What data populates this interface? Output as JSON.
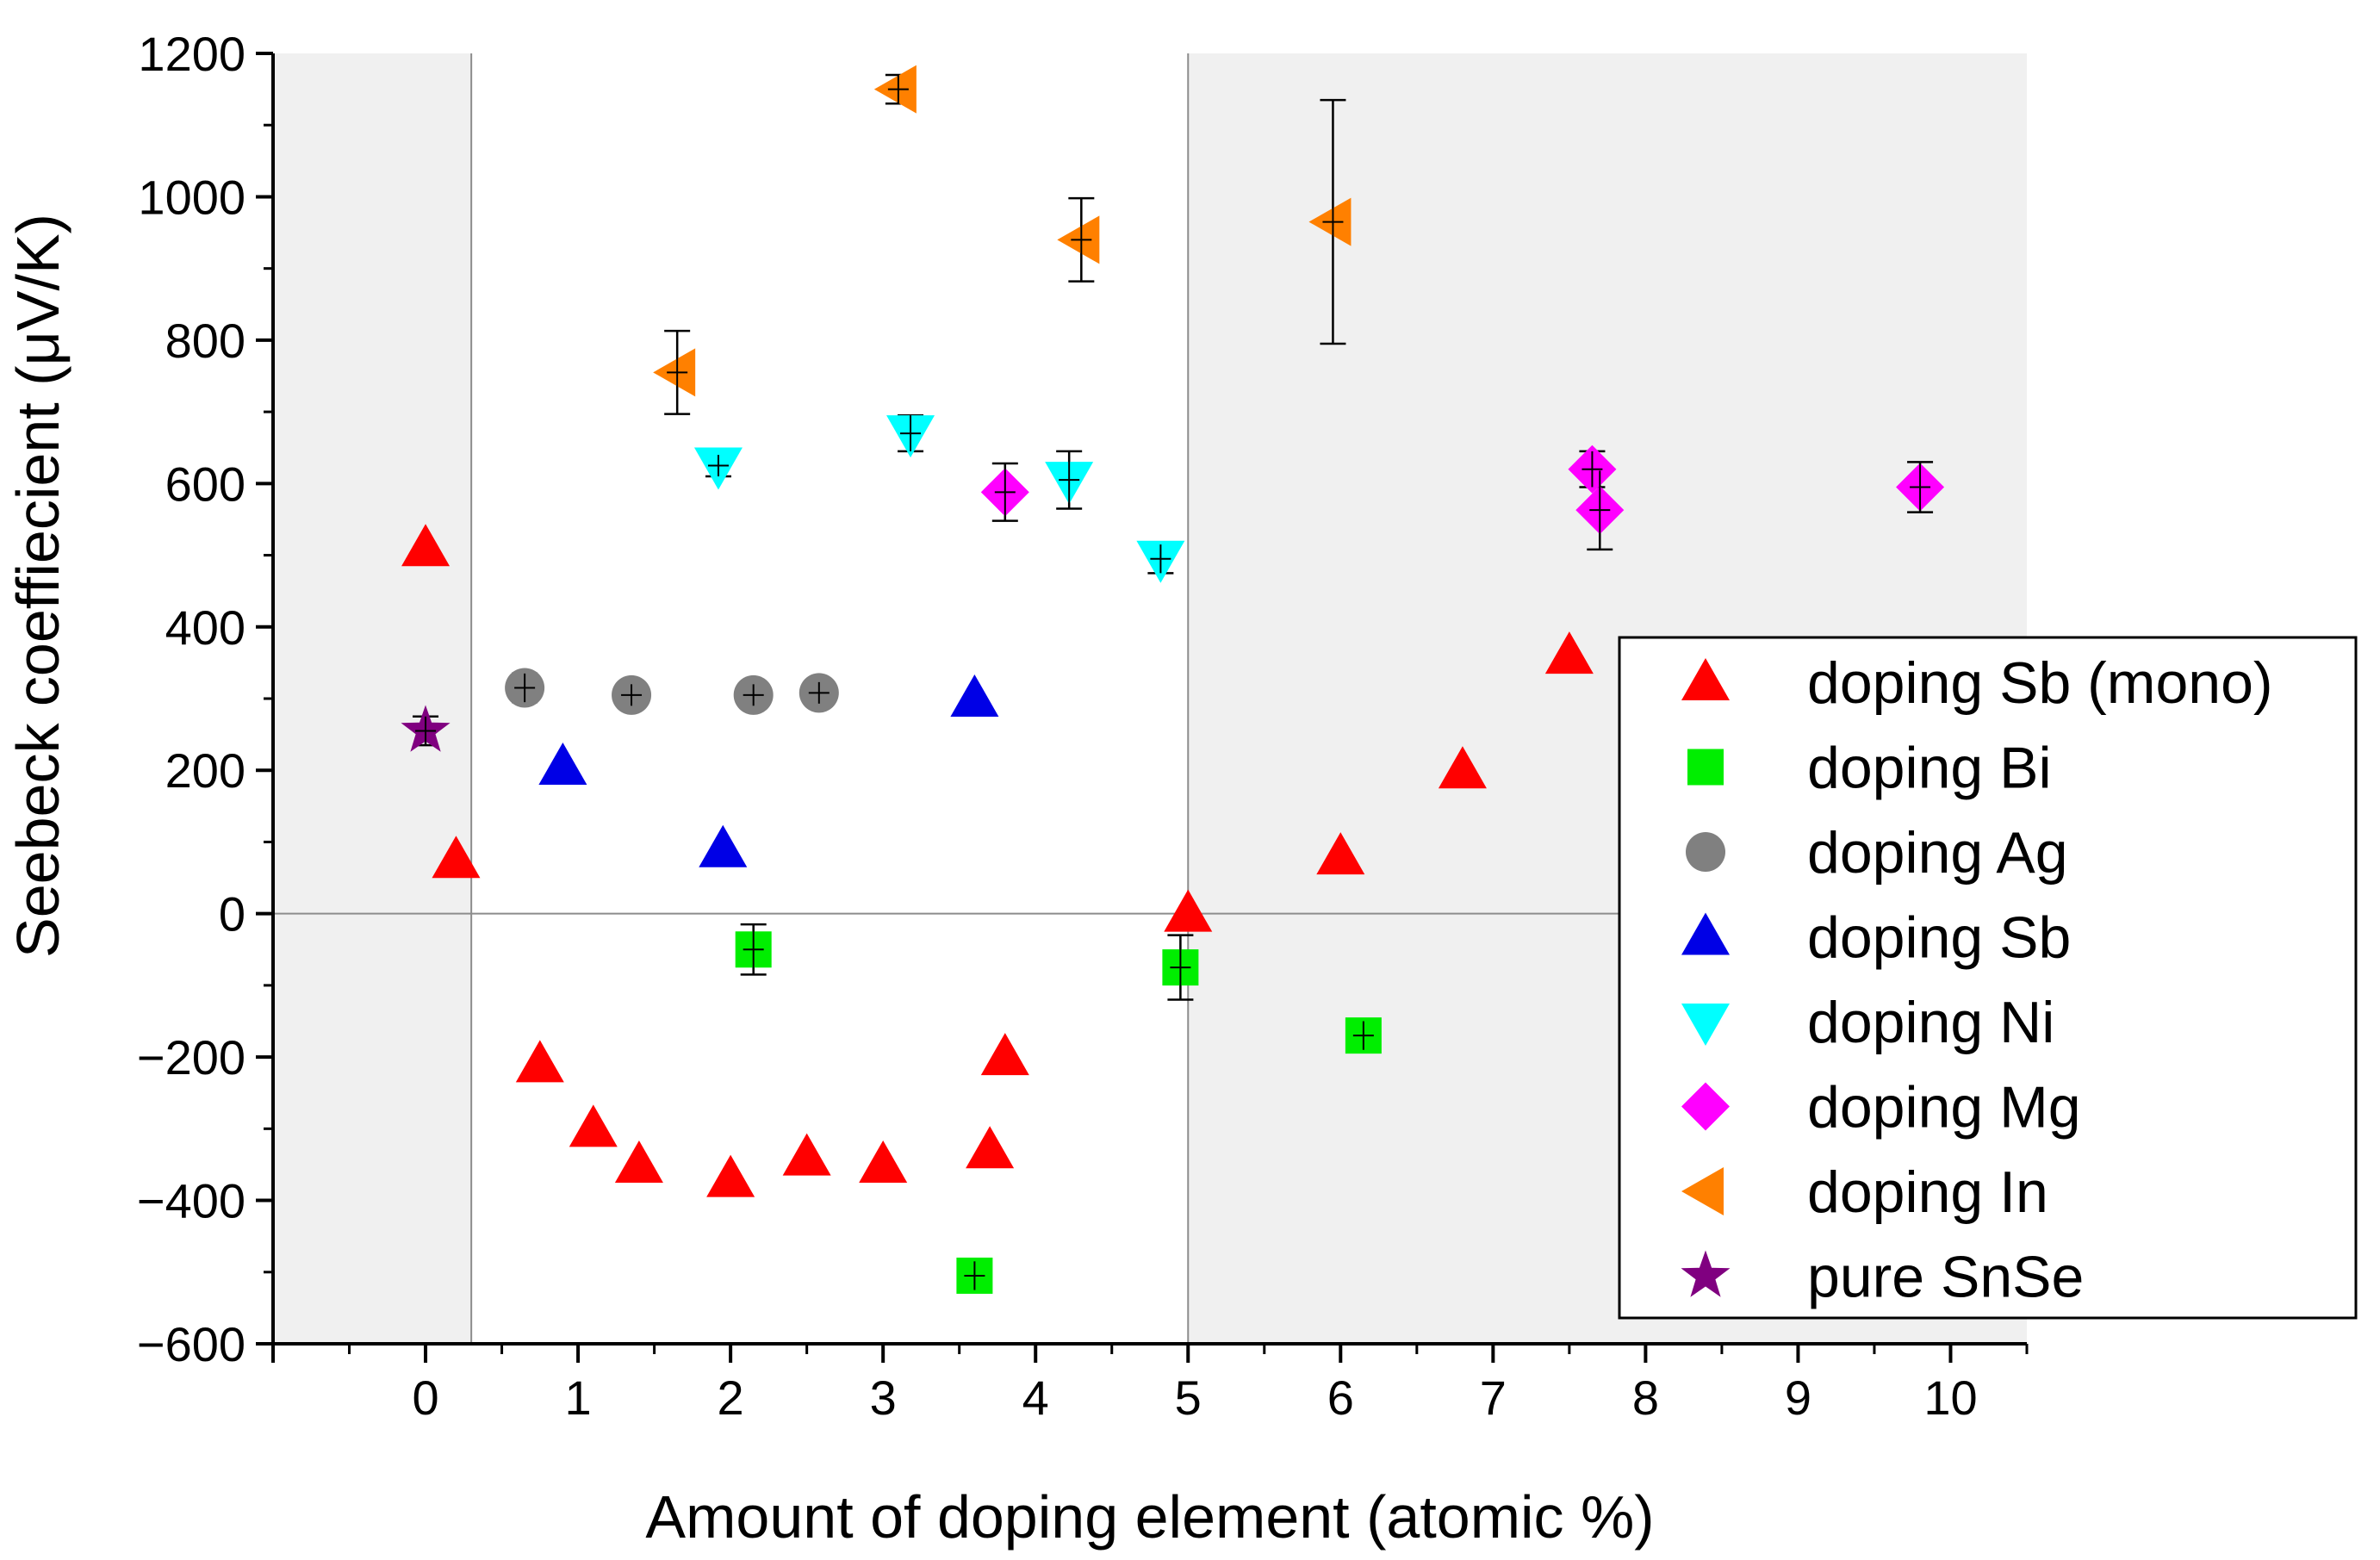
{
  "chart_data": {
    "type": "scatter",
    "title": "",
    "xlabel": "Amount of doping element (atomic %)",
    "ylabel": "Seebeck coeffiecient (μV/K)",
    "xlim": [
      -1,
      10.5
    ],
    "ylim": [
      -600,
      1200
    ],
    "xticks": [
      0,
      1,
      2,
      3,
      4,
      5,
      6,
      7,
      8,
      9,
      10
    ],
    "yticks": [
      -600,
      -400,
      -200,
      0,
      200,
      400,
      600,
      800,
      1000,
      1200
    ],
    "xtick_labels": [
      "0",
      "1",
      "2",
      "3",
      "4",
      "5",
      "6",
      "7",
      "8",
      "9",
      "10"
    ],
    "ytick_labels": [
      "−600",
      "−400",
      "−200",
      "0",
      "200",
      "400",
      "600",
      "800",
      "1000",
      "1200"
    ],
    "shaded_regions": [
      {
        "x_from": -1,
        "x_to": 0.3,
        "color": "#f0f0f0"
      },
      {
        "x_from": 5,
        "x_to": 10.5,
        "color": "#f0f0f0"
      }
    ],
    "reference_lines": {
      "x": [
        0.3,
        5
      ],
      "y": [
        0
      ]
    },
    "legend_position": "right",
    "series": [
      {
        "name": "doping Sb (mono)",
        "marker": "triangle-up",
        "color": "#ff0000",
        "points": [
          {
            "x": 0,
            "y": 510
          },
          {
            "x": 0.2,
            "y": 75
          },
          {
            "x": 0.75,
            "y": -210
          },
          {
            "x": 1.1,
            "y": -300
          },
          {
            "x": 1.4,
            "y": -350
          },
          {
            "x": 2.0,
            "y": -370
          },
          {
            "x": 2.5,
            "y": -340
          },
          {
            "x": 3.0,
            "y": -350
          },
          {
            "x": 3.7,
            "y": -330
          },
          {
            "x": 3.8,
            "y": -200
          },
          {
            "x": 5.0,
            "y": 0
          },
          {
            "x": 6.0,
            "y": 80
          },
          {
            "x": 6.8,
            "y": 200
          },
          {
            "x": 7.5,
            "y": 360
          }
        ]
      },
      {
        "name": "doping Bi",
        "marker": "square",
        "color": "#00ee00",
        "points": [
          {
            "x": 2.15,
            "y": -50,
            "err": 35
          },
          {
            "x": 3.6,
            "y": -505,
            "err": 20
          },
          {
            "x": 4.95,
            "y": -75,
            "err": 45
          },
          {
            "x": 6.15,
            "y": -170,
            "err": 20
          }
        ]
      },
      {
        "name": "doping Ag",
        "marker": "circle",
        "color": "#808080",
        "points": [
          {
            "x": 0.65,
            "y": 315,
            "err": 20
          },
          {
            "x": 1.35,
            "y": 305,
            "err": 15
          },
          {
            "x": 2.15,
            "y": 305,
            "err": 15
          },
          {
            "x": 2.58,
            "y": 308,
            "err": 15
          }
        ]
      },
      {
        "name": "doping Sb",
        "marker": "triangle-up",
        "color": "#0000e6",
        "points": [
          {
            "x": 0.9,
            "y": 205
          },
          {
            "x": 1.95,
            "y": 90
          },
          {
            "x": 3.6,
            "y": 300
          }
        ]
      },
      {
        "name": "doping Ni",
        "marker": "triangle-down",
        "color": "#00ffff",
        "points": [
          {
            "x": 1.92,
            "y": 625,
            "err": 15
          },
          {
            "x": 3.18,
            "y": 670,
            "err": 25
          },
          {
            "x": 4.22,
            "y": 605,
            "err": 40
          },
          {
            "x": 4.82,
            "y": 495,
            "err": 20
          }
        ]
      },
      {
        "name": "doping Mg",
        "marker": "diamond",
        "color": "#ff00ff",
        "points": [
          {
            "x": 3.8,
            "y": 588,
            "err": 40
          },
          {
            "x": 7.65,
            "y": 620,
            "err": 25
          },
          {
            "x": 7.7,
            "y": 563,
            "err": 55
          },
          {
            "x": 9.8,
            "y": 595,
            "err": 35
          }
        ]
      },
      {
        "name": "doping In",
        "marker": "triangle-left",
        "color": "#ff8000",
        "points": [
          {
            "x": 1.65,
            "y": 755,
            "err": 58
          },
          {
            "x": 3.1,
            "y": 1150,
            "err": 20
          },
          {
            "x": 4.3,
            "y": 940,
            "err": 58
          },
          {
            "x": 5.95,
            "y": 965,
            "err": 170
          }
        ]
      },
      {
        "name": "pure SnSe",
        "marker": "star",
        "color": "#800080",
        "points": [
          {
            "x": 0,
            "y": 255,
            "err": 20
          }
        ]
      }
    ]
  }
}
